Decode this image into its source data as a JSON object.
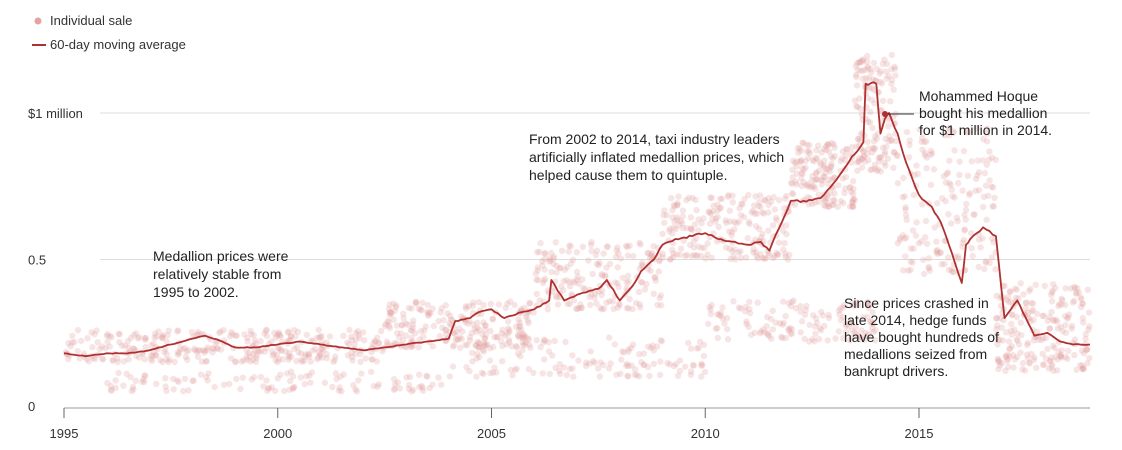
{
  "chart_data": {
    "type": "scatter",
    "title": "",
    "xlabel": "",
    "ylabel": "",
    "xlim": [
      1995,
      2019
    ],
    "ylim": [
      0,
      1.18
    ],
    "grid": true,
    "legend_position": "top-left",
    "x_ticks": [
      {
        "value": 1995,
        "label": "1995"
      },
      {
        "value": 2000,
        "label": "2000"
      },
      {
        "value": 2005,
        "label": "2005"
      },
      {
        "value": 2010,
        "label": "2010"
      },
      {
        "value": 2015,
        "label": "2015"
      }
    ],
    "y_ticks": [
      {
        "value": 0,
        "label": "0"
      },
      {
        "value": 0.5,
        "label": "0.5"
      },
      {
        "value": 1.0,
        "label": "$1 million"
      }
    ],
    "legend": [
      {
        "name": "Individual sale",
        "kind": "dot",
        "color": "#e3a3a3"
      },
      {
        "name": "60-day moving average",
        "kind": "line",
        "color": "#b03030"
      }
    ],
    "series": [
      {
        "name": "60-day moving average",
        "kind": "line",
        "color": "#b03030",
        "x": [
          1995,
          1995.5,
          1996,
          1996.5,
          1997,
          1997.5,
          1998,
          1998.3,
          1998.7,
          1999,
          1999.5,
          2000,
          2000.5,
          2001,
          2001.5,
          2002,
          2002.5,
          2003,
          2003.5,
          2004,
          2004.15,
          2004.5,
          2004.7,
          2005,
          2005.3,
          2005.7,
          2006,
          2006.35,
          2006.4,
          2006.7,
          2007,
          2007.5,
          2007.7,
          2008,
          2008.3,
          2008.5,
          2008.8,
          2009,
          2009.3,
          2009.7,
          2010,
          2010.3,
          2010.7,
          2011,
          2011.3,
          2011.5,
          2012,
          2012.3,
          2012.7,
          2013,
          2013.3,
          2013.5,
          2013.7,
          2013.75,
          2014,
          2014.1,
          2014.2,
          2014.3,
          2014.5,
          2014.7,
          2015,
          2015.3,
          2015.5,
          2015.7,
          2016,
          2016.1,
          2016.2,
          2016.5,
          2016.8,
          2017,
          2017.3,
          2017.5,
          2017.7,
          2018,
          2018.3,
          2018.6,
          2019
        ],
        "values": [
          0.18,
          0.17,
          0.18,
          0.18,
          0.19,
          0.21,
          0.23,
          0.24,
          0.22,
          0.2,
          0.2,
          0.21,
          0.22,
          0.21,
          0.2,
          0.19,
          0.2,
          0.21,
          0.22,
          0.23,
          0.29,
          0.3,
          0.32,
          0.33,
          0.3,
          0.32,
          0.33,
          0.36,
          0.43,
          0.36,
          0.38,
          0.4,
          0.43,
          0.36,
          0.41,
          0.46,
          0.5,
          0.55,
          0.57,
          0.58,
          0.59,
          0.57,
          0.56,
          0.55,
          0.56,
          0.53,
          0.7,
          0.7,
          0.71,
          0.76,
          0.82,
          0.86,
          0.9,
          1.1,
          1.1,
          0.93,
          0.98,
          1.0,
          0.93,
          0.83,
          0.72,
          0.68,
          0.63,
          0.55,
          0.42,
          0.55,
          0.57,
          0.61,
          0.58,
          0.3,
          0.36,
          0.3,
          0.24,
          0.25,
          0.22,
          0.21,
          0.21
        ]
      },
      {
        "name": "Individual sale",
        "kind": "scatter",
        "color": "#e3a3a3",
        "clusters": [
          {
            "x0": 1995,
            "x1": 2002.5,
            "y0": 0.15,
            "y1": 0.26,
            "n": 320
          },
          {
            "x0": 1996,
            "x1": 2004,
            "y0": 0.05,
            "y1": 0.12,
            "n": 110
          },
          {
            "x0": 2002.5,
            "x1": 2006,
            "y0": 0.2,
            "y1": 0.36,
            "n": 220
          },
          {
            "x0": 2004,
            "x1": 2010,
            "y0": 0.1,
            "y1": 0.24,
            "n": 140
          },
          {
            "x0": 2006,
            "x1": 2009,
            "y0": 0.33,
            "y1": 0.56,
            "n": 190
          },
          {
            "x0": 2009,
            "x1": 2012,
            "y0": 0.5,
            "y1": 0.72,
            "n": 210
          },
          {
            "x0": 2010,
            "x1": 2014,
            "y0": 0.22,
            "y1": 0.36,
            "n": 140
          },
          {
            "x0": 2012,
            "x1": 2013.5,
            "y0": 0.68,
            "y1": 0.9,
            "n": 160
          },
          {
            "x0": 2013.5,
            "x1": 2014.5,
            "y0": 0.8,
            "y1": 1.2,
            "n": 150
          },
          {
            "x0": 2014.5,
            "x1": 2016.8,
            "y0": 0.45,
            "y1": 0.95,
            "n": 180
          },
          {
            "x0": 2016.8,
            "x1": 2019,
            "y0": 0.12,
            "y1": 0.42,
            "n": 220
          }
        ]
      }
    ],
    "annotations": [
      {
        "id": "stable",
        "lines": [
          "Medallion prices were",
          "relatively stable from",
          "1995 to 2002."
        ]
      },
      {
        "id": "inflated",
        "lines": [
          "From 2002 to 2014, taxi industry leaders",
          "artificially inflated medallion prices, which",
          "helped cause them to quintuple."
        ]
      },
      {
        "id": "hoque",
        "lines": [
          "Mohammed Hoque",
          "bought his medallion",
          "for $1 million in 2014."
        ],
        "point": {
          "x": 2014.4,
          "y": 0.99
        }
      },
      {
        "id": "crash",
        "lines": [
          "Since prices crashed in",
          "late 2014, hedge funds",
          "have bought hundreds of",
          "medallions seized from",
          "bankrupt drivers."
        ]
      }
    ]
  }
}
